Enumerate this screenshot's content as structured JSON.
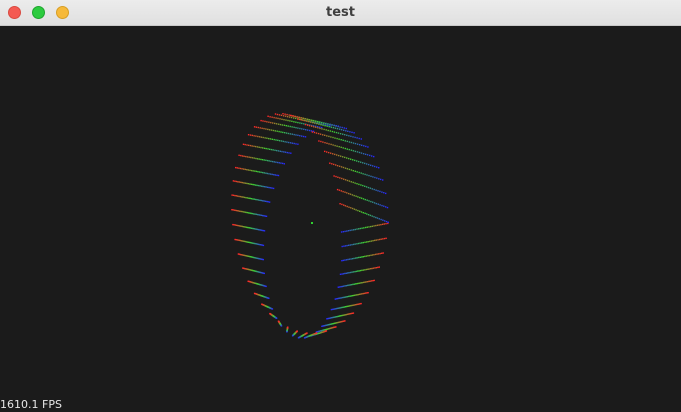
{
  "window": {
    "title": "test",
    "buttons": {
      "close_color": "#f45a52",
      "zoom_color": "#2ccb3f",
      "minimize_color": "#f6b93a"
    }
  },
  "viewport": {
    "background": "#1b1b1b",
    "fps_label": "1610.1 FPS",
    "object": {
      "shape": "twisted point-cloud ring",
      "palette": [
        "#3030ff",
        "#30d030",
        "#ff3030"
      ]
    }
  }
}
